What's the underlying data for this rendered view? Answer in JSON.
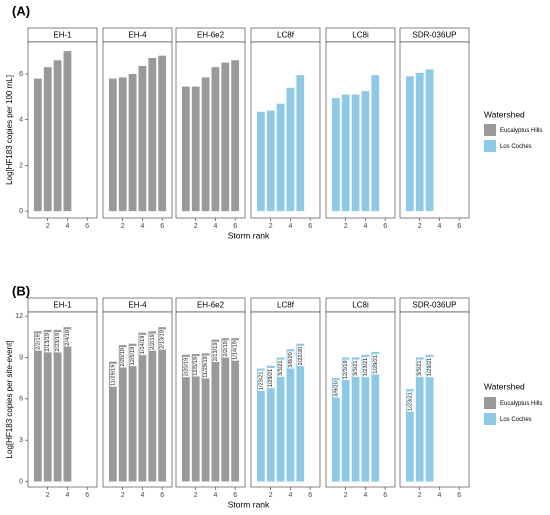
{
  "chart_data": [
    {
      "type": "bar",
      "panel_label": "(A)",
      "title": "",
      "xlabel": "Storm rank",
      "ylabel": "Log[HF183 copies per 100 mL]",
      "ylim": [
        -0.3,
        7.4
      ],
      "yticks": [
        0,
        2,
        4,
        6
      ],
      "xlim": [
        0,
        7
      ],
      "xticks": [
        2,
        4,
        6
      ],
      "grid": false,
      "legend": {
        "title": "Watershed",
        "placement": "right",
        "entries": [
          {
            "name": "Eucalyptus Hills",
            "color": "#999999"
          },
          {
            "name": "Los Coches",
            "color": "#8ecae6"
          }
        ]
      },
      "facets": [
        {
          "name": "EH-1",
          "watershed": "Eucalyptus Hills",
          "values": [
            5.8,
            6.3,
            6.6,
            7.0
          ]
        },
        {
          "name": "EH-4",
          "watershed": "Eucalyptus Hills",
          "values": [
            5.8,
            5.85,
            6.0,
            6.35,
            6.7,
            6.8
          ]
        },
        {
          "name": "EH-6e2",
          "watershed": "Eucalyptus Hills",
          "values": [
            5.45,
            5.45,
            5.85,
            6.3,
            6.5,
            6.6
          ]
        },
        {
          "name": "LC8f",
          "watershed": "Los Coches",
          "values": [
            4.35,
            4.4,
            4.7,
            5.4,
            5.95
          ]
        },
        {
          "name": "LC8i",
          "watershed": "Los Coches",
          "values": [
            4.95,
            5.1,
            5.1,
            5.25,
            5.95
          ]
        },
        {
          "name": "SDR-036UP",
          "watershed": "Los Coches",
          "values": [
            5.9,
            6.05,
            6.2
          ]
        }
      ]
    },
    {
      "type": "bar",
      "panel_label": "(B)",
      "title": "",
      "xlabel": "Storm rank",
      "ylabel": "Log[HF183 copies per site-event]",
      "ylim": [
        -0.4,
        12.3
      ],
      "yticks": [
        0,
        3,
        6,
        9,
        12
      ],
      "xlim": [
        0,
        7
      ],
      "xticks": [
        2,
        4,
        6
      ],
      "grid": false,
      "legend": {
        "title": "Watershed",
        "placement": "right",
        "entries": [
          {
            "name": "Eucalyptus Hills",
            "color": "#999999"
          },
          {
            "name": "Los Coches",
            "color": "#8ecae6"
          }
        ]
      },
      "facets": [
        {
          "name": "EH-1",
          "watershed": "Eucalyptus Hills",
          "values": [
            10.9,
            11.0,
            11.0,
            11.2
          ],
          "labels": [
            "2/2/19",
            "2/13/19",
            "2/23/19",
            "2/4/19"
          ]
        },
        {
          "name": "EH-4",
          "watershed": "Eucalyptus Hills",
          "values": [
            8.7,
            9.9,
            10.0,
            10.8,
            10.9,
            11.2
          ],
          "labels": [
            "11/29/19",
            "2/20/19",
            "12/5/19",
            "1/14/19",
            "2/2/19",
            "2/13/19"
          ]
        },
        {
          "name": "EH-6e2",
          "watershed": "Eucalyptus Hills",
          "values": [
            9.2,
            9.25,
            9.3,
            10.3,
            10.4,
            10.4
          ],
          "labels": [
            "2/20/19",
            "12/5/19",
            "11/29/19",
            "2/13/19",
            "2/2/19",
            "1/14/19"
          ]
        },
        {
          "name": "LC8f",
          "watershed": "Los Coches",
          "values": [
            8.2,
            8.4,
            9.0,
            9.6,
            10.0
          ],
          "labels": [
            "1/23/21",
            "1/29/21",
            "3/3/21",
            "3/8/20",
            "2/22/20"
          ]
        },
        {
          "name": "LC8i",
          "watershed": "Los Coches",
          "values": [
            7.5,
            9.0,
            9.0,
            9.2,
            9.4
          ],
          "labels": [
            "3/9/20",
            "12/3/19",
            "3/3/21",
            "1/23/21",
            "1/29/21"
          ]
        },
        {
          "name": "SDR-036UP",
          "watershed": "Los Coches",
          "values": [
            6.7,
            9.0,
            9.2
          ],
          "labels": [
            "1/23/21",
            "3/3/21",
            "1/29/21"
          ]
        }
      ]
    }
  ]
}
